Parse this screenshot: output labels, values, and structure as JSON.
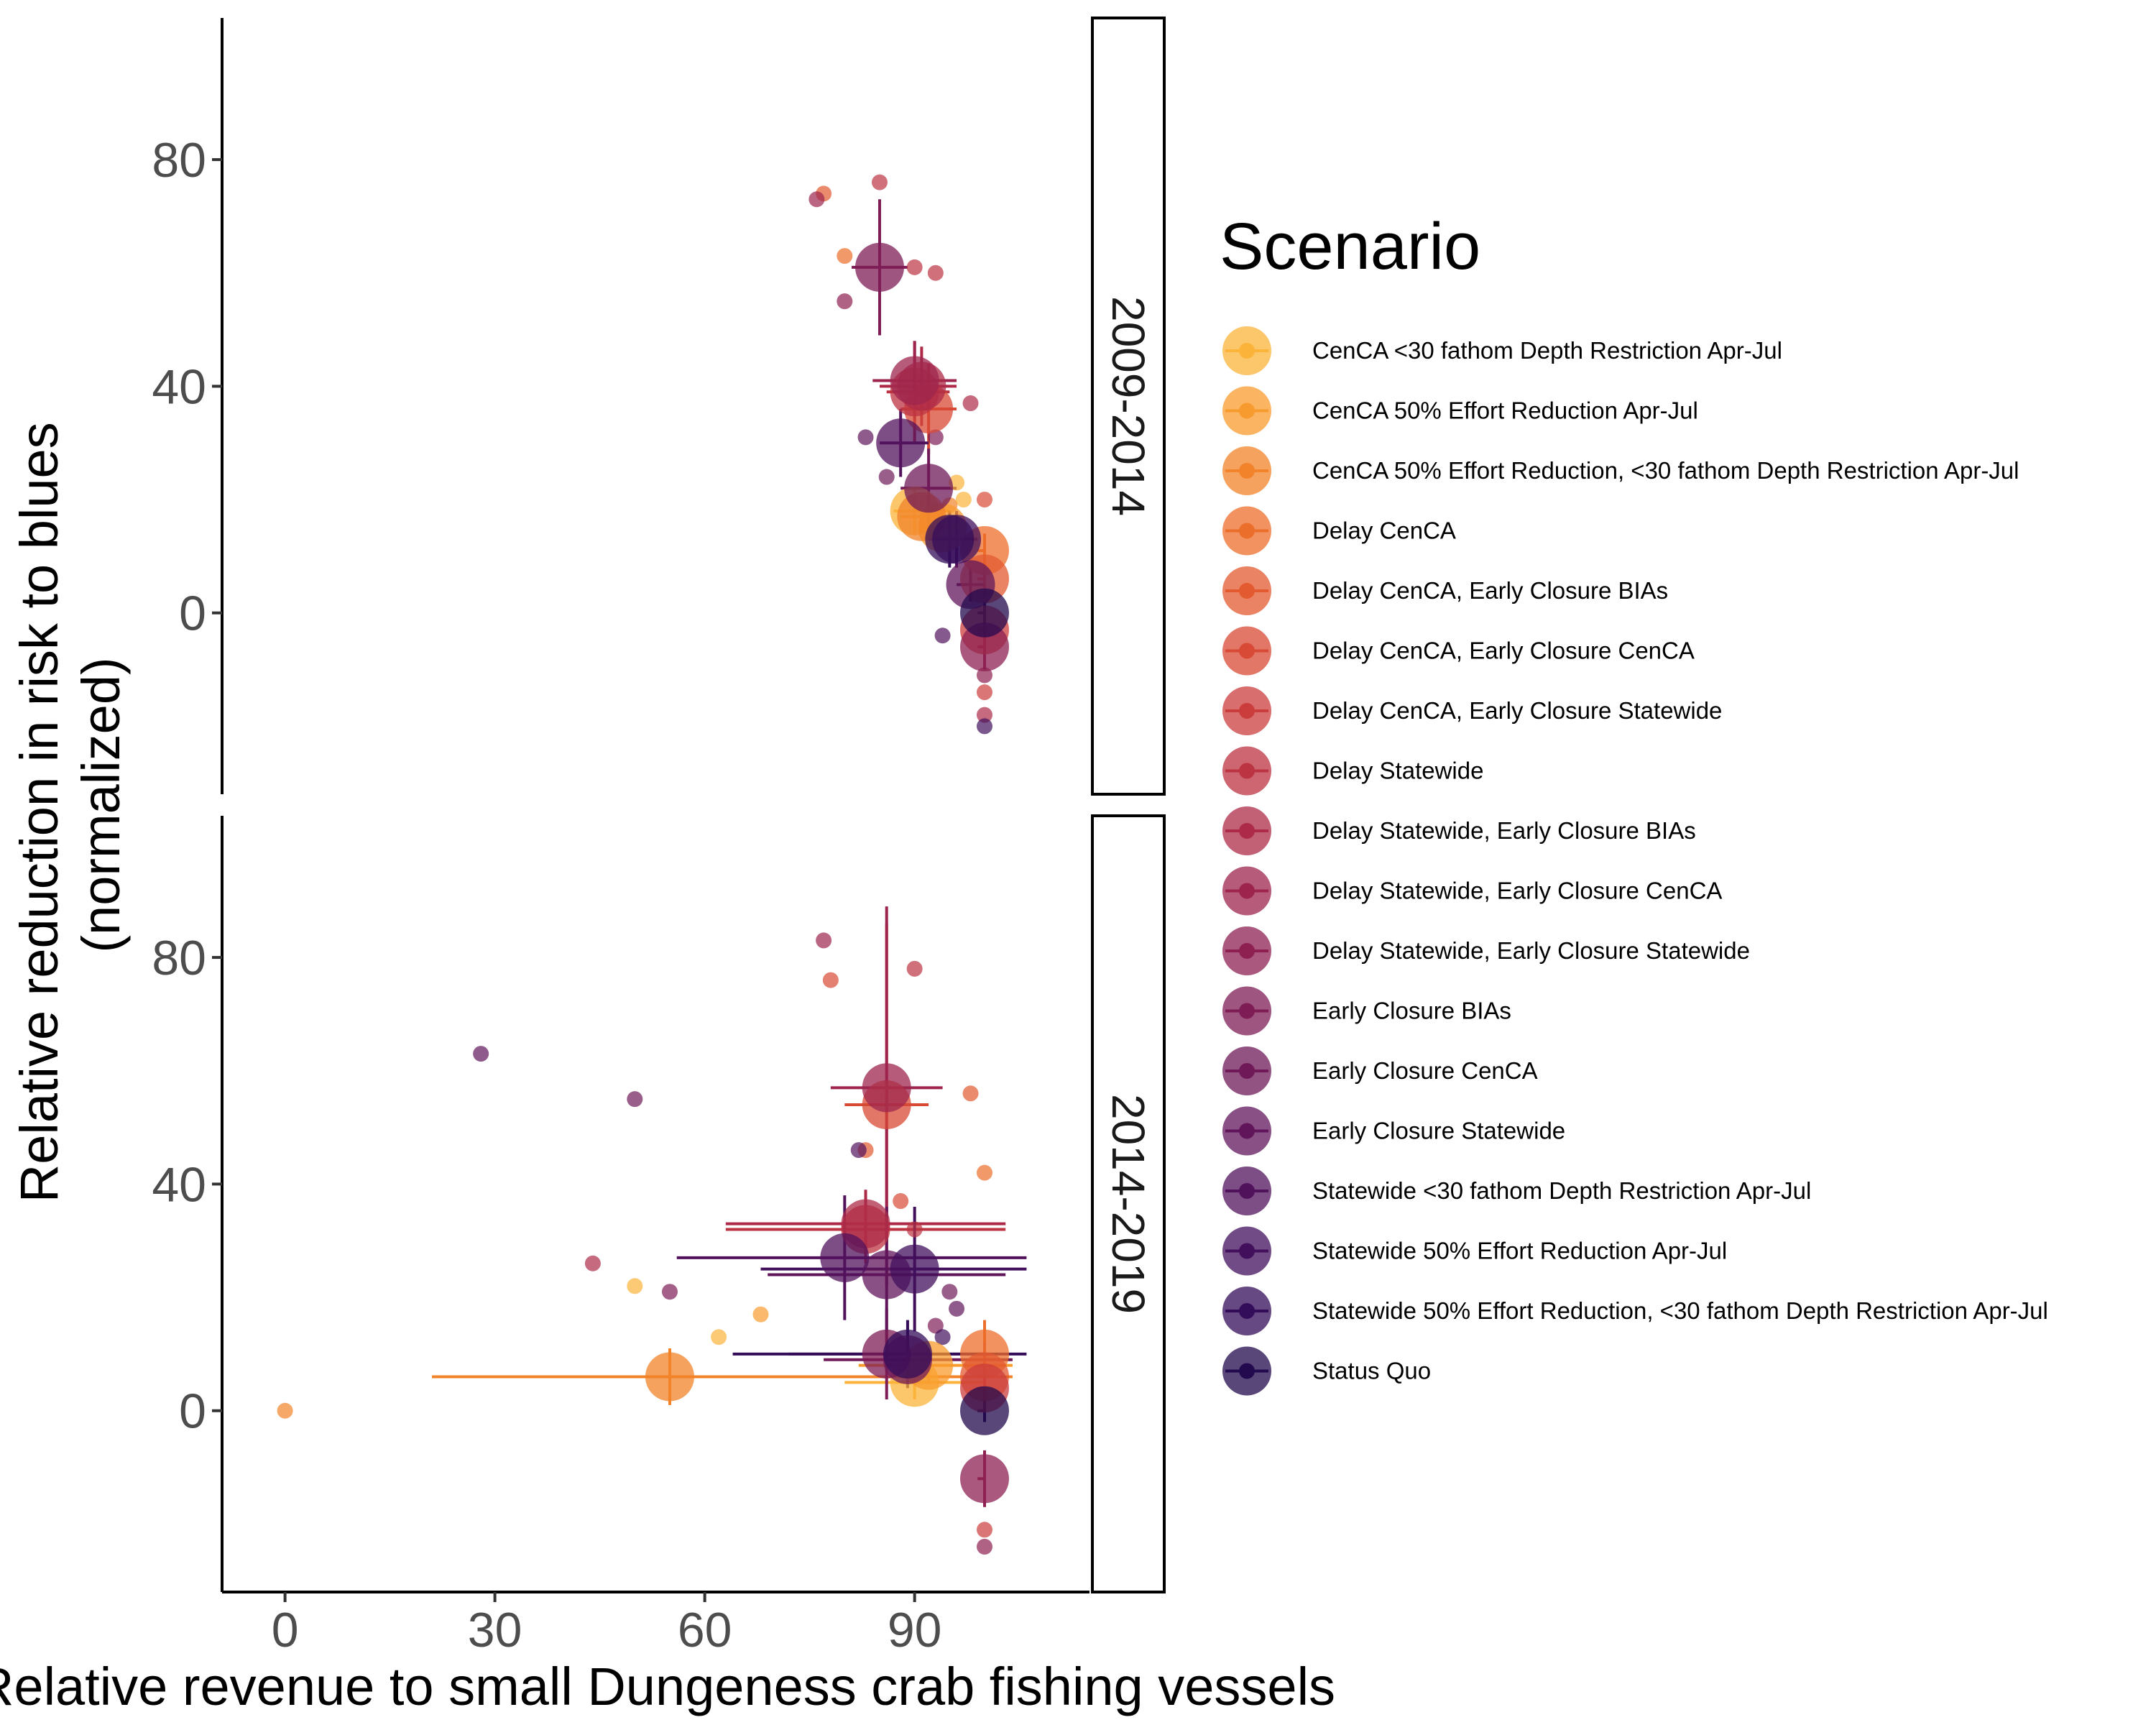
{
  "chart_data": {
    "type": "scatter",
    "xlabel": "Relative revenue to small Dungeness crab fishing vessels",
    "ylabel": "Relative reduction in risk to blues (normalized)",
    "ylabel_lines": [
      "Relative reduction in risk to blues",
      "(normalized)"
    ],
    "xlim": [
      -9,
      115
    ],
    "ylim": [
      -32,
      105
    ],
    "x_ticks": [
      0,
      30,
      60,
      90
    ],
    "y_ticks": [
      0,
      40,
      80
    ],
    "legend": {
      "title": "Scenario",
      "position": "right",
      "items": [
        {
          "name": "CenCA <30 fathom Depth Restriction Apr-Jul",
          "color": "#fbb33a"
        },
        {
          "name": "CenCA 50% Effort Reduction Apr-Jul",
          "color": "#f89b2e"
        },
        {
          "name": "CenCA 50% Effort Reduction, <30 fathom Depth Restriction Apr-Jul",
          "color": "#f2832a"
        },
        {
          "name": "Delay CenCA",
          "color": "#ec6e2b"
        },
        {
          "name": "Delay CenCA, Early Closure BIAs",
          "color": "#e35a30"
        },
        {
          "name": "Delay CenCA, Early Closure CenCA",
          "color": "#d84a35"
        },
        {
          "name": "Delay CenCA, Early Closure Statewide",
          "color": "#cb3d3c"
        },
        {
          "name": "Delay Statewide",
          "color": "#bc3342"
        },
        {
          "name": "Delay Statewide, Early Closure BIAs",
          "color": "#ad2b48"
        },
        {
          "name": "Delay Statewide, Early Closure CenCA",
          "color": "#9d254d"
        },
        {
          "name": "Delay Statewide, Early Closure Statewide",
          "color": "#8e2051"
        },
        {
          "name": "Early Closure BIAs",
          "color": "#7e1c55"
        },
        {
          "name": "Early Closure CenCA",
          "color": "#6f1958"
        },
        {
          "name": "Early Closure Statewide",
          "color": "#60155b"
        },
        {
          "name": "Statewide <30 fathom Depth Restriction Apr-Jul",
          "color": "#51125c"
        },
        {
          "name": "Statewide 50% Effort Reduction Apr-Jul",
          "color": "#420f5c"
        },
        {
          "name": "Statewide 50% Effort Reduction, <30 fathom Depth Restriction Apr-Jul",
          "color": "#330c5a"
        },
        {
          "name": "Status Quo",
          "color": "#230a4e"
        }
      ]
    },
    "panels": [
      {
        "label": "2009-2014",
        "large": [
          {
            "s": 0,
            "x": 90,
            "y": 18,
            "ex": [
              87,
              95
            ],
            "ey": [
              14,
              22
            ]
          },
          {
            "s": 1,
            "x": 94,
            "y": 15,
            "ex": [
              91,
              97
            ],
            "ey": [
              12,
              18
            ]
          },
          {
            "s": 2,
            "x": 91,
            "y": 17,
            "ex": [
              88,
              95
            ],
            "ey": [
              14,
              20
            ]
          },
          {
            "s": 3,
            "x": 100,
            "y": 11,
            "ex": [
              99,
              100
            ],
            "ey": [
              8,
              14
            ]
          },
          {
            "s": 4,
            "x": 100,
            "y": 6,
            "ex": [
              99,
              100
            ],
            "ey": [
              3,
              9
            ]
          },
          {
            "s": 5,
            "x": 92,
            "y": 36,
            "ex": [
              88,
              96
            ],
            "ey": [
              28,
              44
            ]
          },
          {
            "s": 6,
            "x": 100,
            "y": -3,
            "ex": [
              99,
              100
            ],
            "ey": [
              -7,
              1
            ]
          },
          {
            "s": 7,
            "x": 90,
            "y": 39,
            "ex": [
              86,
              95
            ],
            "ey": [
              30,
              48
            ]
          },
          {
            "s": 8,
            "x": 91,
            "y": 40,
            "ex": [
              85,
              96
            ],
            "ey": [
              33,
              47
            ]
          },
          {
            "s": 9,
            "x": 90,
            "y": 41,
            "ex": [
              84,
              96
            ],
            "ey": [
              34,
              48
            ]
          },
          {
            "s": 10,
            "x": 100,
            "y": -6,
            "ex": [
              99,
              100
            ],
            "ey": [
              -10,
              -2
            ]
          },
          {
            "s": 11,
            "x": 85,
            "y": 61,
            "ex": [
              81,
              89
            ],
            "ey": [
              49,
              73
            ]
          },
          {
            "s": 12,
            "x": 92,
            "y": 22,
            "ex": [
              88,
              96
            ],
            "ey": [
              15,
              29
            ]
          },
          {
            "s": 13,
            "x": 98,
            "y": 5,
            "ex": [
              96,
              100
            ],
            "ey": [
              2,
              8
            ]
          },
          {
            "s": 14,
            "x": 88,
            "y": 30,
            "ex": [
              85,
              92
            ],
            "ey": [
              24,
              36
            ]
          },
          {
            "s": 15,
            "x": 96,
            "y": 13,
            "ex": [
              93,
              99
            ],
            "ey": [
              8,
              18
            ]
          },
          {
            "s": 16,
            "x": 95,
            "y": 13,
            "ex": [
              92,
              98
            ],
            "ey": [
              8,
              18
            ]
          },
          {
            "s": 17,
            "x": 100,
            "y": 0,
            "ex": [
              99,
              100
            ],
            "ey": [
              -2,
              2
            ]
          }
        ],
        "small": [
          {
            "s": 0,
            "x": 96,
            "y": 23
          },
          {
            "s": 0,
            "x": 97,
            "y": 20
          },
          {
            "s": 1,
            "x": 93,
            "y": 18
          },
          {
            "s": 2,
            "x": 95,
            "y": 19
          },
          {
            "s": 3,
            "x": 80,
            "y": 63
          },
          {
            "s": 4,
            "x": 77,
            "y": 74
          },
          {
            "s": 5,
            "x": 100,
            "y": 20
          },
          {
            "s": 6,
            "x": 100,
            "y": -14
          },
          {
            "s": 7,
            "x": 85,
            "y": 76
          },
          {
            "s": 7,
            "x": 90,
            "y": 61
          },
          {
            "s": 7,
            "x": 93,
            "y": 60
          },
          {
            "s": 8,
            "x": 98,
            "y": 37
          },
          {
            "s": 8,
            "x": 100,
            "y": -18
          },
          {
            "s": 9,
            "x": 76,
            "y": 73
          },
          {
            "s": 10,
            "x": 80,
            "y": 55
          },
          {
            "s": 10,
            "x": 100,
            "y": -11
          },
          {
            "s": 11,
            "x": 93,
            "y": 31
          },
          {
            "s": 12,
            "x": 86,
            "y": 24
          },
          {
            "s": 13,
            "x": 83,
            "y": 31
          },
          {
            "s": 14,
            "x": 94,
            "y": -4
          },
          {
            "s": 15,
            "x": 100,
            "y": -20
          }
        ]
      },
      {
        "label": "2014-2019",
        "large": [
          {
            "s": 0,
            "x": 90,
            "y": 5,
            "ex": [
              80,
              100
            ],
            "ey": [
              2,
              8
            ]
          },
          {
            "s": 1,
            "x": 92,
            "y": 8,
            "ex": [
              82,
              104
            ],
            "ey": [
              5,
              11
            ]
          },
          {
            "s": 2,
            "x": 55,
            "y": 6,
            "ex": [
              21,
              104
            ],
            "ey": [
              1,
              11
            ]
          },
          {
            "s": 3,
            "x": 100,
            "y": 10,
            "ex": [
              99,
              100
            ],
            "ey": [
              4,
              16
            ]
          },
          {
            "s": 4,
            "x": 100,
            "y": 6,
            "ex": [
              99,
              100
            ],
            "ey": [
              0,
              12
            ]
          },
          {
            "s": 5,
            "x": 86,
            "y": 54,
            "ex": [
              80,
              92
            ],
            "ey": [
              22,
              86
            ]
          },
          {
            "s": 6,
            "x": 100,
            "y": 4,
            "ex": [
              99,
              100
            ],
            "ey": [
              -1,
              9
            ]
          },
          {
            "s": 7,
            "x": 83,
            "y": 32,
            "ex": [
              63,
              103
            ],
            "ey": [
              26,
              38
            ]
          },
          {
            "s": 8,
            "x": 83,
            "y": 33,
            "ex": [
              63,
              103
            ],
            "ey": [
              27,
              39
            ]
          },
          {
            "s": 9,
            "x": 86,
            "y": 57,
            "ex": [
              78,
              94
            ],
            "ey": [
              22,
              89
            ]
          },
          {
            "s": 10,
            "x": 100,
            "y": -12,
            "ex": [
              99,
              100
            ],
            "ey": [
              -17,
              -7
            ]
          },
          {
            "s": 11,
            "x": 86,
            "y": 10,
            "ex": [
              72,
              100
            ],
            "ey": [
              2,
              18
            ]
          },
          {
            "s": 12,
            "x": 89,
            "y": 9,
            "ex": [
              77,
              104
            ],
            "ey": [
              4,
              14
            ]
          },
          {
            "s": 13,
            "x": 86,
            "y": 24,
            "ex": [
              69,
              103
            ],
            "ey": [
              12,
              36
            ]
          },
          {
            "s": 14,
            "x": 80,
            "y": 27,
            "ex": [
              56,
              106
            ],
            "ey": [
              16,
              38
            ]
          },
          {
            "s": 15,
            "x": 90,
            "y": 25,
            "ex": [
              68,
              106
            ],
            "ey": [
              14,
              36
            ]
          },
          {
            "s": 16,
            "x": 89,
            "y": 10,
            "ex": [
              64,
              106
            ],
            "ey": [
              4,
              16
            ]
          },
          {
            "s": 17,
            "x": 100,
            "y": 0,
            "ex": [
              99,
              100
            ],
            "ey": [
              -2,
              2
            ]
          }
        ],
        "small": [
          {
            "s": 0,
            "x": 62,
            "y": 13
          },
          {
            "s": 0,
            "x": 50,
            "y": 22
          },
          {
            "s": 1,
            "x": 68,
            "y": 17
          },
          {
            "s": 2,
            "x": 0,
            "y": 0
          },
          {
            "s": 3,
            "x": 100,
            "y": 42
          },
          {
            "s": 4,
            "x": 83,
            "y": 46
          },
          {
            "s": 4,
            "x": 98,
            "y": 56
          },
          {
            "s": 5,
            "x": 78,
            "y": 76
          },
          {
            "s": 5,
            "x": 88,
            "y": 37
          },
          {
            "s": 6,
            "x": 100,
            "y": -21
          },
          {
            "s": 7,
            "x": 90,
            "y": 78
          },
          {
            "s": 7,
            "x": 90,
            "y": 32
          },
          {
            "s": 8,
            "x": 44,
            "y": 26
          },
          {
            "s": 9,
            "x": 77,
            "y": 83
          },
          {
            "s": 10,
            "x": 100,
            "y": -24
          },
          {
            "s": 11,
            "x": 55,
            "y": 21
          },
          {
            "s": 11,
            "x": 93,
            "y": 15
          },
          {
            "s": 12,
            "x": 50,
            "y": 55
          },
          {
            "s": 12,
            "x": 95,
            "y": 21
          },
          {
            "s": 13,
            "x": 28,
            "y": 63
          },
          {
            "s": 13,
            "x": 96,
            "y": 18
          },
          {
            "s": 14,
            "x": 82,
            "y": 46
          },
          {
            "s": 15,
            "x": 94,
            "y": 13
          }
        ]
      }
    ]
  }
}
